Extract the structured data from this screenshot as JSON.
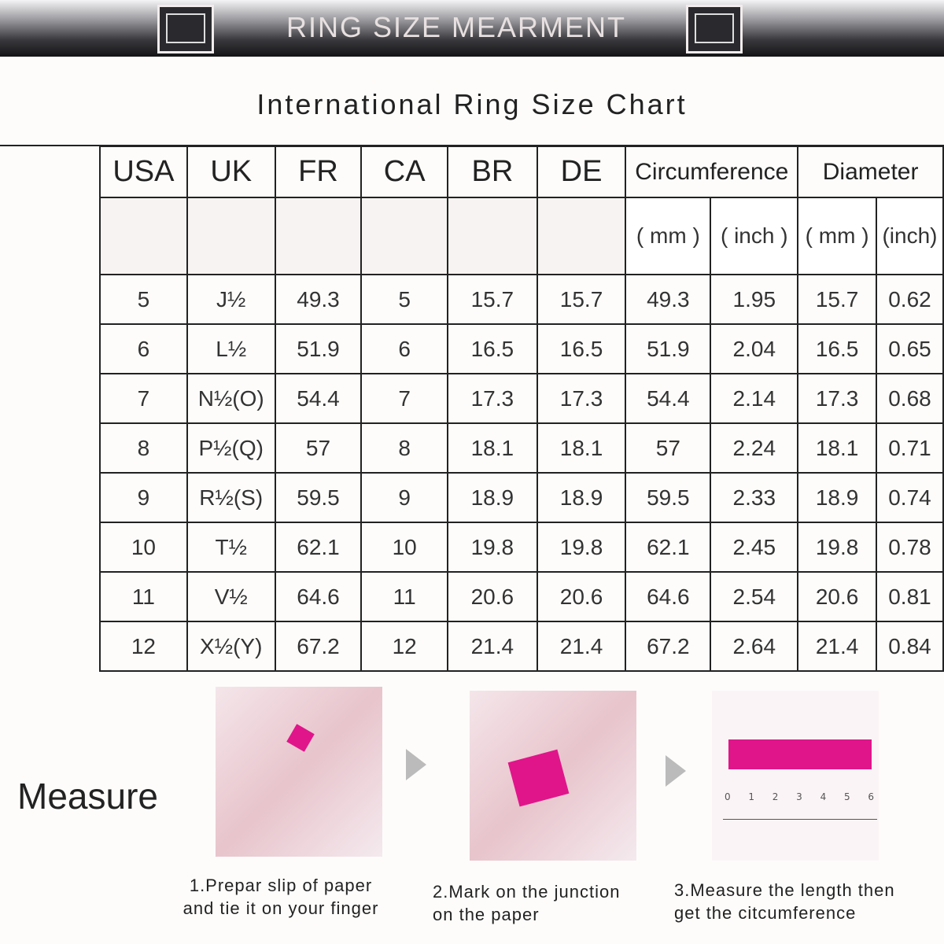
{
  "banner": {
    "title": "RING SIZE MEARMENT"
  },
  "title": "International Ring Size Chart",
  "table": {
    "headers": [
      "USA",
      "UK",
      "FR",
      "CA",
      "BR",
      "DE",
      "Circumference",
      "Diameter"
    ],
    "units": [
      "( mm )",
      "( inch )",
      "( mm )",
      "(inch)"
    ],
    "rows": [
      [
        "5",
        "J½",
        "49.3",
        "5",
        "15.7",
        "15.7",
        "49.3",
        "1.95",
        "15.7",
        "0.62"
      ],
      [
        "6",
        "L½",
        "51.9",
        "6",
        "16.5",
        "16.5",
        "51.9",
        "2.04",
        "16.5",
        "0.65"
      ],
      [
        "7",
        "N½(O)",
        "54.4",
        "7",
        "17.3",
        "17.3",
        "54.4",
        "2.14",
        "17.3",
        "0.68"
      ],
      [
        "8",
        "P½(Q)",
        "57",
        "8",
        "18.1",
        "18.1",
        "57",
        "2.24",
        "18.1",
        "0.71"
      ],
      [
        "9",
        "R½(S)",
        "59.5",
        "9",
        "18.9",
        "18.9",
        "59.5",
        "2.33",
        "18.9",
        "0.74"
      ],
      [
        "10",
        "T½",
        "62.1",
        "10",
        "19.8",
        "19.8",
        "62.1",
        "2.45",
        "19.8",
        "0.78"
      ],
      [
        "11",
        "V½",
        "64.6",
        "11",
        "20.6",
        "20.6",
        "64.6",
        "2.54",
        "20.6",
        "0.81"
      ],
      [
        "12",
        "X½(Y)",
        "67.2",
        "12",
        "21.4",
        "21.4",
        "67.2",
        "2.64",
        "21.4",
        "0.84"
      ]
    ]
  },
  "measure": {
    "label": "Measure",
    "steps": [
      {
        "line1": "1.Prepar slip of paper",
        "line2": "and tie it on your finger"
      },
      {
        "line1": "2.Mark on the junction",
        "line2": "on the paper"
      },
      {
        "line1": "3.Measure the length then",
        "line2": "get the citcumference"
      }
    ],
    "ruler_numbers": [
      "0",
      "1",
      "2",
      "3",
      "4",
      "5",
      "6"
    ],
    "accent": "#e0158a"
  }
}
